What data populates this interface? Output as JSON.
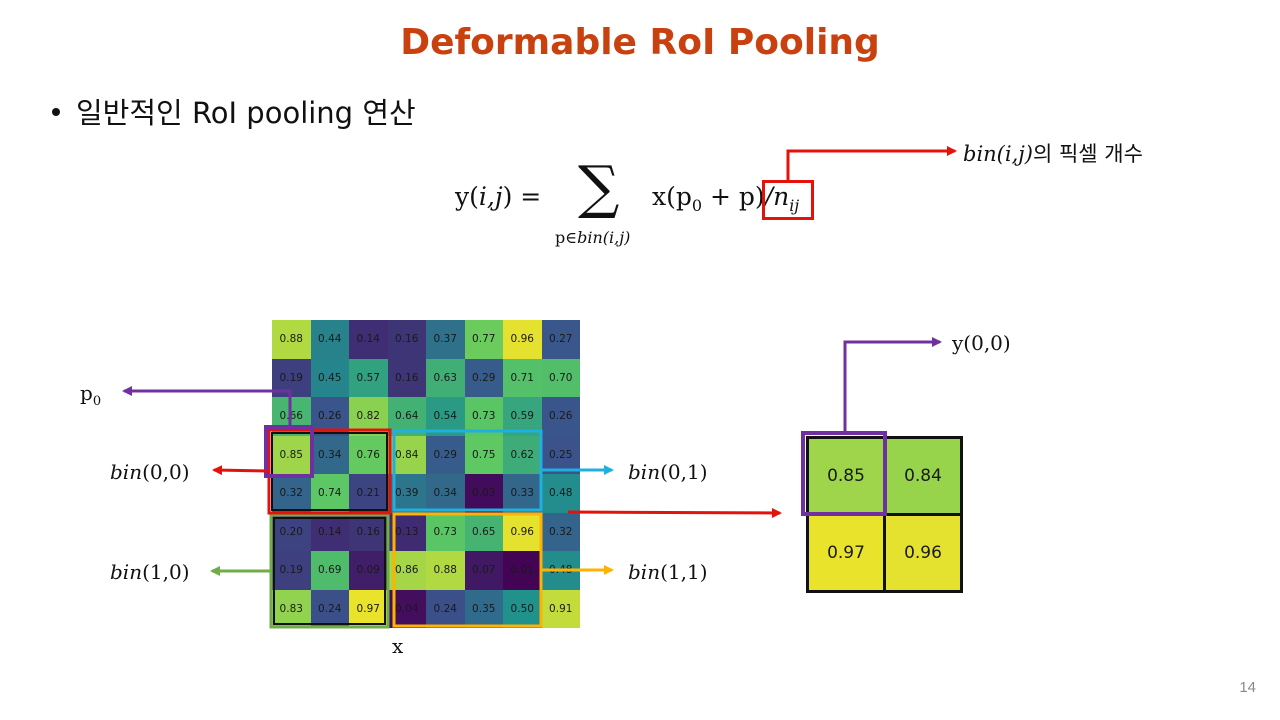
{
  "title": "Deformable RoI Pooling",
  "bullet": "일반적인 RoI pooling 연산",
  "formula": {
    "lhs": "y(",
    "lhs_ij": "i,j",
    "lhs_close": ") =",
    "sum_sub_p": "p∈",
    "sum_sub_bin": "bin(i,j)",
    "rhs": "x(p",
    "rhs_sub0": "0",
    "rhs_mid": " + p)",
    "rhs_div": "/n",
    "rhs_sub_ij": "ij"
  },
  "annotation": {
    "bin_ij": "bin(i,j)",
    "bin_count_text": "의 픽셀 개수"
  },
  "labels": {
    "p0": "p",
    "p0_sub": "0",
    "bin00_fn": "bin",
    "bin00_arg": "(0,0)",
    "bin01_fn": "bin",
    "bin01_arg": "(0,1)",
    "bin10_fn": "bin",
    "bin10_arg": "(1,0)",
    "bin11_fn": "bin",
    "bin11_arg": "(1,1)",
    "x": "x",
    "y00": "y(0,0)"
  },
  "input_grid": [
    [
      "0.88",
      "0.44",
      "0.14",
      "0.16",
      "0.37",
      "0.77",
      "0.96",
      "0.27"
    ],
    [
      "0.19",
      "0.45",
      "0.57",
      "0.16",
      "0.63",
      "0.29",
      "0.71",
      "0.70"
    ],
    [
      "0.66",
      "0.26",
      "0.82",
      "0.64",
      "0.54",
      "0.73",
      "0.59",
      "0.26"
    ],
    [
      "0.85",
      "0.34",
      "0.76",
      "0.84",
      "0.29",
      "0.75",
      "0.62",
      "0.25"
    ],
    [
      "0.32",
      "0.74",
      "0.21",
      "0.39",
      "0.34",
      "0.03",
      "0.33",
      "0.48"
    ],
    [
      "0.20",
      "0.14",
      "0.16",
      "0.13",
      "0.73",
      "0.65",
      "0.96",
      "0.32"
    ],
    [
      "0.19",
      "0.69",
      "0.09",
      "0.86",
      "0.88",
      "0.07",
      "0.01",
      "0.48"
    ],
    [
      "0.83",
      "0.24",
      "0.97",
      "0.04",
      "0.24",
      "0.35",
      "0.50",
      "0.91"
    ]
  ],
  "output_grid": [
    [
      "0.85",
      "0.84"
    ],
    [
      "0.97",
      "0.96"
    ]
  ],
  "colors": {
    "title": "#c9410e",
    "red": "#e3120b",
    "purple": "#7030a0",
    "cyan": "#1fb0e0",
    "orange": "#ffb300",
    "green": "#70ad47"
  },
  "page_number": "14"
}
